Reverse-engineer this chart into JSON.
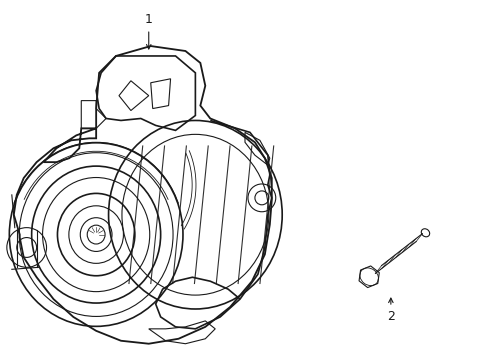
{
  "background_color": "#ffffff",
  "line_color": "#1a1a1a",
  "fig_width": 4.89,
  "fig_height": 3.6,
  "dpi": 100,
  "label1": "1",
  "label2": "2"
}
